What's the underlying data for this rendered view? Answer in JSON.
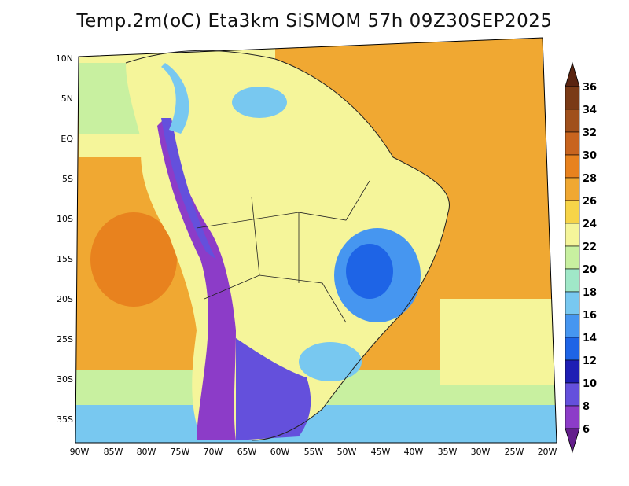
{
  "title": "Temp.2m(oC) Eta3km SiSMOM 57h 09Z30SEP2025",
  "map": {
    "lat_ticks": [
      "10N",
      "5N",
      "EQ",
      "5S",
      "10S",
      "15S",
      "20S",
      "25S",
      "30S",
      "35S"
    ],
    "lon_ticks": [
      "90W",
      "85W",
      "80W",
      "75W",
      "70W",
      "65W",
      "60W",
      "55W",
      "50W",
      "45W",
      "40W",
      "35W",
      "30W",
      "25W",
      "20W"
    ],
    "lat_range": [
      -38,
      11
    ],
    "lon_range": [
      -91,
      -20
    ]
  },
  "colorbar": {
    "labels": [
      "36",
      "34",
      "32",
      "30",
      "28",
      "26",
      "24",
      "22",
      "20",
      "18",
      "16",
      "14",
      "12",
      "10",
      "8",
      "6"
    ],
    "colors": [
      "#5a2410",
      "#7a3a16",
      "#a0501c",
      "#c8641e",
      "#e8821e",
      "#f0a832",
      "#f7d448",
      "#f5f59a",
      "#c8f0a0",
      "#a0e8c8",
      "#78c8f0",
      "#4696f0",
      "#1e64e6",
      "#1e1eb4",
      "#6450dc",
      "#8c3cc8",
      "#641e8c"
    ]
  },
  "icons": {
    "colorbar_top_arrow": "triangle-up-icon",
    "colorbar_bottom_arrow": "triangle-down-icon"
  }
}
